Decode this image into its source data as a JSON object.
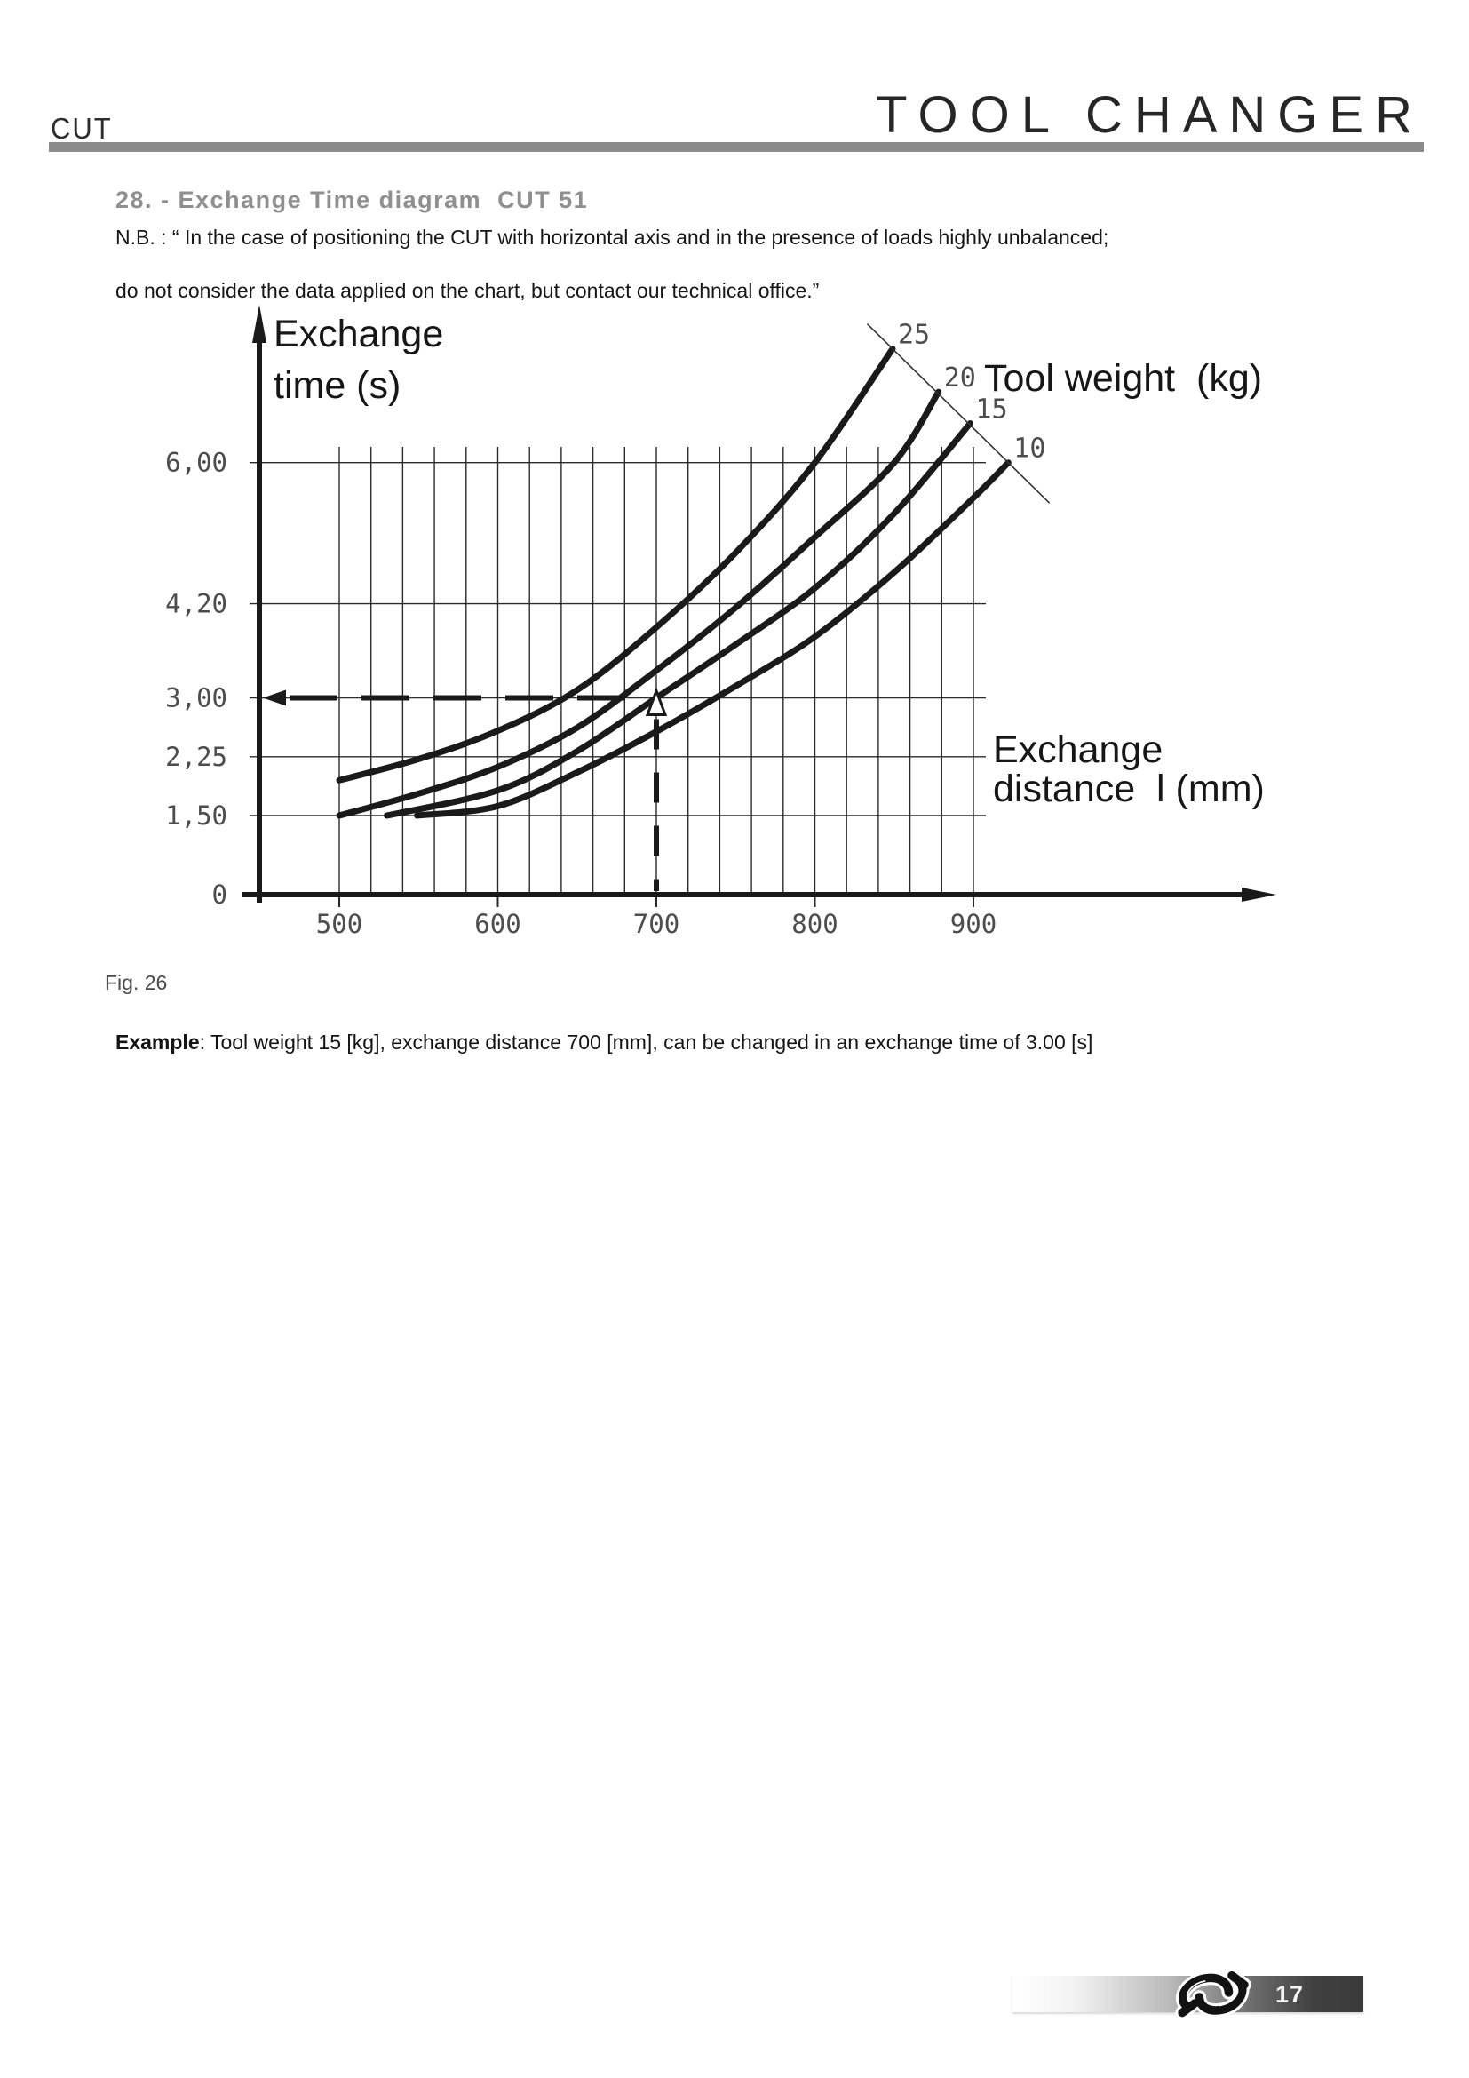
{
  "header": {
    "product": "CUT",
    "title": "TOOL CHANGER"
  },
  "section": {
    "title": "28. - Exchange Time diagram  CUT 51",
    "nb_line1": "N.B. : “ In the case of positioning the CUT with horizontal axis and in the presence of loads highly unbalanced;",
    "nb_line2": "do not consider the data applied on the chart, but contact our technical office.”"
  },
  "figure": {
    "caption": "Fig. 26"
  },
  "example": {
    "label": "Example",
    "text": ": Tool weight 15 [kg], exchange distance 700 [mm], can be changed in an exchange time of 3.00 [s]"
  },
  "footer": {
    "page_number": "17",
    "logo_icon": "knot-logo"
  },
  "chart_data": {
    "type": "line",
    "title": "",
    "ylabel_line1": "Exchange",
    "ylabel_line2": "time (s)",
    "xlabel_line1": "Exchange",
    "xlabel_line2": "distance  l (mm)",
    "series_group_label": "Tool weight  (kg)",
    "x_axis": {
      "unit": "mm",
      "range": [
        500,
        900
      ],
      "grid_step": 20,
      "tick_step": 100
    },
    "y_axis": {
      "unit": "s",
      "plotted_max": 6.0
    },
    "x_ticks": [
      {
        "label": "500",
        "value": 500
      },
      {
        "label": "600",
        "value": 600
      },
      {
        "label": "700",
        "value": 700
      },
      {
        "label": "800",
        "value": 800
      },
      {
        "label": "900",
        "value": 900
      }
    ],
    "y_ticks": [
      {
        "label": "6,00",
        "value": 6.0
      },
      {
        "label": "4,20",
        "value": 4.2
      },
      {
        "label": "3,00",
        "value": 3.0
      },
      {
        "label": "2,25",
        "value": 2.25
      },
      {
        "label": "1,50",
        "value": 1.5
      },
      {
        "label": "0",
        "value": 0
      }
    ],
    "series": [
      {
        "name": "25",
        "weight_kg": 25,
        "points": [
          [
            500,
            1.95
          ],
          [
            550,
            2.22
          ],
          [
            600,
            2.58
          ],
          [
            650,
            3.1
          ],
          [
            700,
            3.9
          ],
          [
            750,
            4.85
          ],
          [
            800,
            6.0
          ],
          [
            849,
            7.45
          ]
        ]
      },
      {
        "name": "20",
        "weight_kg": 20,
        "points": [
          [
            500,
            1.5
          ],
          [
            550,
            1.78
          ],
          [
            600,
            2.12
          ],
          [
            650,
            2.62
          ],
          [
            700,
            3.35
          ],
          [
            750,
            4.15
          ],
          [
            800,
            5.05
          ],
          [
            850,
            6.0
          ],
          [
            878,
            6.9
          ]
        ]
      },
      {
        "name": "15",
        "weight_kg": 15,
        "points": [
          [
            530,
            1.5
          ],
          [
            600,
            1.82
          ],
          [
            650,
            2.32
          ],
          [
            700,
            3.0
          ],
          [
            750,
            3.68
          ],
          [
            800,
            4.4
          ],
          [
            850,
            5.35
          ],
          [
            898,
            6.5
          ]
        ]
      },
      {
        "name": "10",
        "weight_kg": 10,
        "points": [
          [
            549,
            1.5
          ],
          [
            600,
            1.62
          ],
          [
            650,
            2.05
          ],
          [
            700,
            2.57
          ],
          [
            750,
            3.15
          ],
          [
            800,
            3.78
          ],
          [
            850,
            4.6
          ],
          [
            900,
            5.55
          ],
          [
            922,
            6.0
          ]
        ]
      }
    ],
    "example_marker": {
      "weight_kg": 15,
      "distance_mm": 700,
      "time_s": 3.0
    },
    "legend_position": "labels along top-right diagonal leader line",
    "grid": true,
    "colors": {
      "ink": "#1a1a1a",
      "grid": "#2b2b2b",
      "tick_text": "#4d4d4d"
    }
  }
}
